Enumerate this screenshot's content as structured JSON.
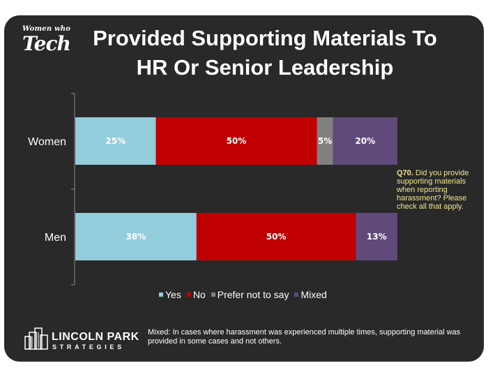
{
  "title_line1": "Provided Supporting Materials To",
  "title_line2": "HR Or Senior Leadership",
  "logo": {
    "small_text": "Women who",
    "big_text": "Tech"
  },
  "question": {
    "label": "Q70.",
    "text": "Did you provide supporting materials when reporting harassment? Please check all that apply."
  },
  "footnote": "Mixed: In cases where harassment was experienced multiple times, supporting material was provided in some cases and not others.",
  "brand": {
    "name": "LINCOLN PARK",
    "sub": "STRATEGIES"
  },
  "chart_data": {
    "type": "bar",
    "orientation": "horizontal",
    "stacked": true,
    "categories": [
      "Women",
      "Men"
    ],
    "series": [
      {
        "name": "Yes",
        "color": "#92cddc",
        "values": [
          25,
          38
        ],
        "labels": [
          "25%",
          "38%"
        ]
      },
      {
        "name": "No",
        "color": "#c00000",
        "values": [
          50,
          50
        ],
        "labels": [
          "50%",
          "50%"
        ]
      },
      {
        "name": "Prefer not to say",
        "color": "#808080",
        "values": [
          5,
          0
        ],
        "labels": [
          "5%",
          ""
        ]
      },
      {
        "name": "Mixed",
        "color": "#604a7b",
        "values": [
          20,
          13
        ],
        "labels": [
          "20%",
          "13%"
        ]
      }
    ],
    "legend_position": "bottom",
    "grid": false
  }
}
